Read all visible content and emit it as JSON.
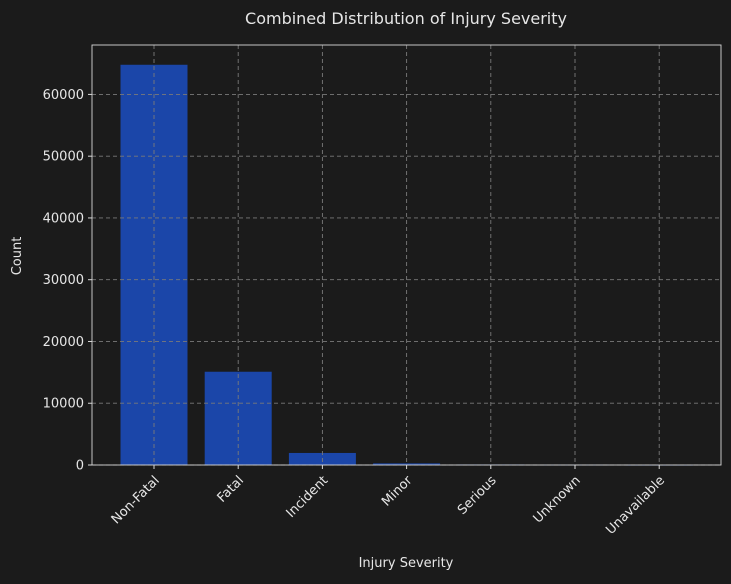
{
  "chart_data": {
    "type": "bar",
    "title": "Combined Distribution of Injury Severity",
    "xlabel": "Injury Severity",
    "ylabel": "Count",
    "categories": [
      "Non-Fatal",
      "Fatal",
      "Incident",
      "Minor",
      "Serious",
      "Unknown",
      "Unavailable"
    ],
    "values": [
      64800,
      15100,
      1950,
      260,
      90,
      60,
      40
    ],
    "ylim": [
      0,
      68000
    ],
    "yticks": [
      0,
      10000,
      20000,
      30000,
      40000,
      50000,
      60000
    ],
    "ytick_labels": [
      "0",
      "10000",
      "20000",
      "30000",
      "40000",
      "50000",
      "60000"
    ],
    "grid": true,
    "colors": {
      "background": "#1b1b1b",
      "bar": "#1b46a9",
      "text": "#e6e6e6",
      "axis": "#d9d9d9",
      "grid": "#7a7a7a"
    }
  }
}
